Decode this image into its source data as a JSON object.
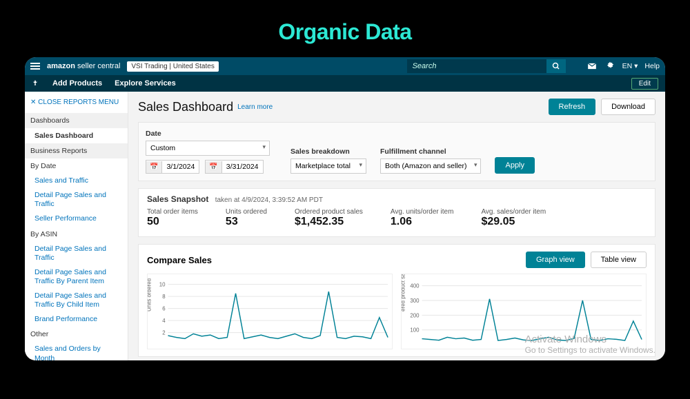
{
  "outer": {
    "title": "Organic Data"
  },
  "topbar": {
    "logo_a": "amazon",
    "logo_b": "seller central",
    "merchant": "VSI Trading | United States",
    "search_placeholder": "Search",
    "lang": "EN",
    "help": "Help"
  },
  "subbar": {
    "add_products": "Add Products",
    "explore": "Explore Services",
    "edit": "Edit"
  },
  "sidebar": {
    "close": "CLOSE REPORTS MENU",
    "sec_dashboards": "Dashboards",
    "item_sales_dashboard": "Sales Dashboard",
    "sec_business": "Business Reports",
    "by_date": "By Date",
    "links_date": [
      "Sales and Traffic",
      "Detail Page Sales and Traffic",
      "Seller Performance"
    ],
    "by_asin": "By ASIN",
    "links_asin": [
      "Detail Page Sales and Traffic",
      "Detail Page Sales and Traffic By Parent Item",
      "Detail Page Sales and Traffic By Child Item",
      "Brand Performance"
    ],
    "other": "Other",
    "links_other": [
      "Sales and Orders by Month"
    ]
  },
  "header": {
    "title": "Sales Dashboard",
    "learn": "Learn more",
    "refresh": "Refresh",
    "download": "Download"
  },
  "filters": {
    "date_label": "Date",
    "date_sel": "Custom",
    "from": "3/1/2024",
    "to": "3/31/2024",
    "breakdown_label": "Sales breakdown",
    "breakdown_sel": "Marketplace total",
    "channel_label": "Fulfillment channel",
    "channel_sel": "Both (Amazon and seller)",
    "apply": "Apply"
  },
  "snapshot": {
    "title": "Sales Snapshot",
    "ts": "taken at 4/9/2024, 3:39:52 AM PDT",
    "metrics": [
      {
        "label": "Total order items",
        "value": "50"
      },
      {
        "label": "Units ordered",
        "value": "53"
      },
      {
        "label": "Ordered product sales",
        "value": "$1,452.35"
      },
      {
        "label": "Avg. units/order item",
        "value": "1.06"
      },
      {
        "label": "Avg. sales/order item",
        "value": "$29.05"
      }
    ]
  },
  "compare": {
    "title": "Compare Sales",
    "graph_view": "Graph view",
    "table_view": "Table view",
    "chart1": {
      "ylabel": "Units ordered",
      "yticks": [
        2,
        4,
        6,
        8,
        10
      ],
      "ymax": 11,
      "line_color": "#008296",
      "grid_color": "#e6e6e6",
      "points": [
        1.5,
        1.2,
        1.0,
        1.8,
        1.4,
        1.6,
        1.0,
        1.2,
        8.5,
        1.0,
        1.3,
        1.6,
        1.2,
        1.0,
        1.4,
        1.8,
        1.2,
        1.0,
        1.5,
        8.8,
        1.2,
        1.0,
        1.4,
        1.3,
        1.0,
        4.5,
        1.2
      ]
    },
    "chart2": {
      "ylabel": "ered product sales",
      "yticks": [
        100,
        200,
        300,
        400
      ],
      "ymax": 450,
      "line_color": "#008296",
      "grid_color": "#e6e6e6",
      "points": [
        40,
        35,
        30,
        50,
        40,
        45,
        30,
        35,
        310,
        28,
        35,
        45,
        32,
        28,
        40,
        50,
        32,
        28,
        42,
        300,
        35,
        28,
        40,
        36,
        28,
        160,
        35
      ]
    }
  },
  "watermark": {
    "line1": "Activate Windows",
    "line2": "Go to Settings to activate Windows."
  }
}
